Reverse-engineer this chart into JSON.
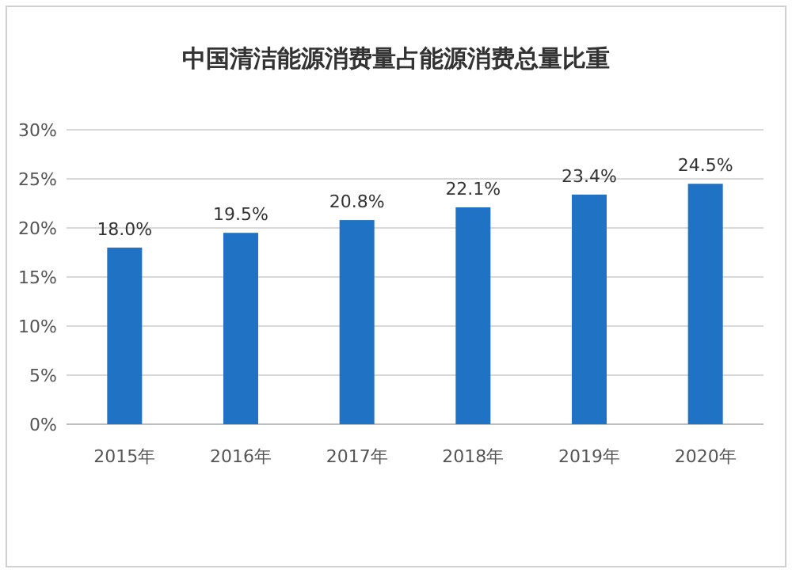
{
  "chart_data": {
    "type": "bar",
    "title": "中国清洁能源消费量占能源消费总量比重",
    "categories": [
      "2015年",
      "2016年",
      "2017年",
      "2018年",
      "2019年",
      "2020年"
    ],
    "values": [
      18.0,
      19.5,
      20.8,
      22.1,
      23.4,
      24.5
    ],
    "value_labels": [
      "18.0%",
      "19.5%",
      "20.8%",
      "22.1%",
      "23.4%",
      "24.5%"
    ],
    "color": "#1f72c4",
    "ylim": [
      0,
      30
    ],
    "yticks": [
      {
        "value": 0,
        "label": "0%"
      },
      {
        "value": 5,
        "label": "5%"
      },
      {
        "value": 10,
        "label": "10%"
      },
      {
        "value": 15,
        "label": "15%"
      },
      {
        "value": 20,
        "label": "20%"
      },
      {
        "value": 25,
        "label": "25%"
      },
      {
        "value": 30,
        "label": "30%"
      }
    ],
    "grid": "y"
  }
}
